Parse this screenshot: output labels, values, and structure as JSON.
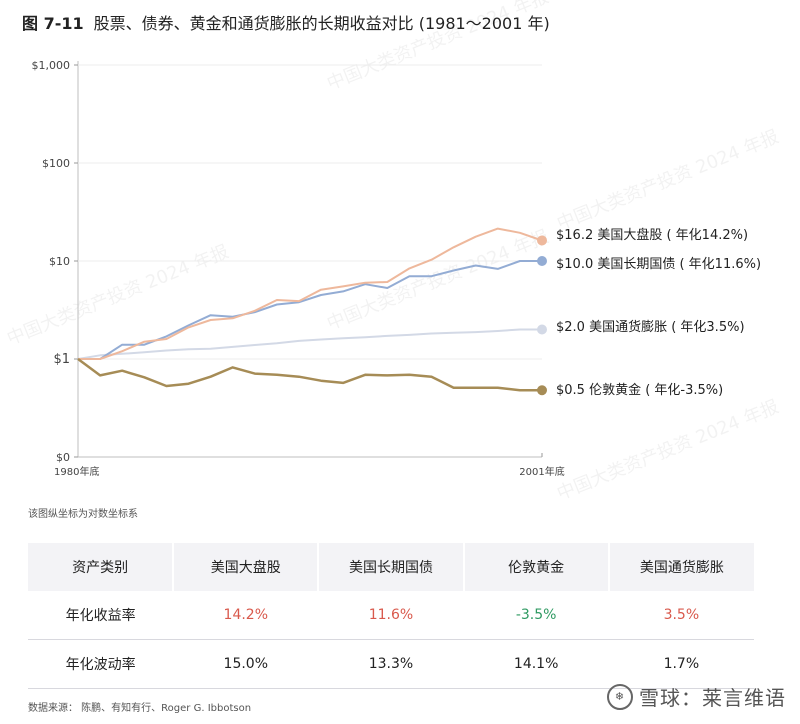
{
  "title": {
    "fig": "图 7-11",
    "text": "股票、债券、黄金和通货膨胀的长期收益对比 (1981〜2001 年)"
  },
  "note": "该图纵坐标为对数坐标系",
  "source": "数据来源：  陈鹏、有知有行、Roger G. Ibbotson",
  "brand": "雪球：莱言维语",
  "watermark": "中国大类资产投资 2024 年报",
  "colors": {
    "stocks": "#eeb89c",
    "bonds": "#93acd4",
    "inflation": "#d3d9e6",
    "gold": "#a68c56"
  },
  "table": {
    "headers": [
      "资产类别",
      "美国大盘股",
      "美国长期国债",
      "伦敦黄金",
      "美国通货膨胀"
    ],
    "rows": [
      {
        "label": "年化收益率",
        "values": [
          "14.2%",
          "11.6%",
          "-3.5%",
          "3.5%"
        ],
        "colors": [
          "red",
          "red",
          "green",
          "red"
        ]
      },
      {
        "label": "年化波动率",
        "values": [
          "15.0%",
          "13.3%",
          "14.1%",
          "1.7%"
        ],
        "colors": [
          "",
          "",
          "",
          ""
        ]
      }
    ]
  },
  "chart_data": {
    "type": "line",
    "scale": "log",
    "y_ticks": [
      "$1,000",
      "$100",
      "$10",
      "$1",
      "$0"
    ],
    "x_tick_labels": [
      "1980年底",
      "2001年底"
    ],
    "x": [
      1980,
      1981,
      1982,
      1983,
      1984,
      1985,
      1986,
      1987,
      1988,
      1989,
      1990,
      1991,
      1992,
      1993,
      1994,
      1995,
      1996,
      1997,
      1998,
      1999,
      2000,
      2001
    ],
    "series": [
      {
        "key": "stocks",
        "label": "$16.2 美国大盘股 ( 年化14.2%)",
        "values": [
          1,
          1.0,
          1.2,
          1.5,
          1.6,
          2.1,
          2.5,
          2.6,
          3.1,
          4.0,
          3.9,
          5.1,
          5.5,
          6.0,
          6.1,
          8.4,
          10.3,
          13.8,
          17.7,
          21.4,
          19.4,
          16.2
        ]
      },
      {
        "key": "bonds",
        "label": "$10.0 美国长期国债 ( 年化11.6%)",
        "values": [
          1,
          1.0,
          1.4,
          1.4,
          1.7,
          2.2,
          2.8,
          2.7,
          3.0,
          3.6,
          3.8,
          4.5,
          4.9,
          5.8,
          5.3,
          7.0,
          7.0,
          8.0,
          9.0,
          8.3,
          10.0,
          10.0
        ]
      },
      {
        "key": "inflation",
        "label": "$2.0 美国通货膨胀 ( 年化3.5%)",
        "values": [
          1,
          1.09,
          1.13,
          1.17,
          1.22,
          1.26,
          1.27,
          1.33,
          1.39,
          1.45,
          1.53,
          1.58,
          1.63,
          1.67,
          1.72,
          1.76,
          1.82,
          1.85,
          1.88,
          1.93,
          2.0,
          2.0
        ]
      },
      {
        "key": "gold",
        "label": "$0.5 伦敦黄金 ( 年化-3.5%)",
        "values": [
          1,
          0.68,
          0.76,
          0.65,
          0.53,
          0.56,
          0.66,
          0.82,
          0.71,
          0.69,
          0.66,
          0.6,
          0.57,
          0.69,
          0.68,
          0.69,
          0.66,
          0.51,
          0.51,
          0.51,
          0.48,
          0.48
        ]
      }
    ]
  }
}
